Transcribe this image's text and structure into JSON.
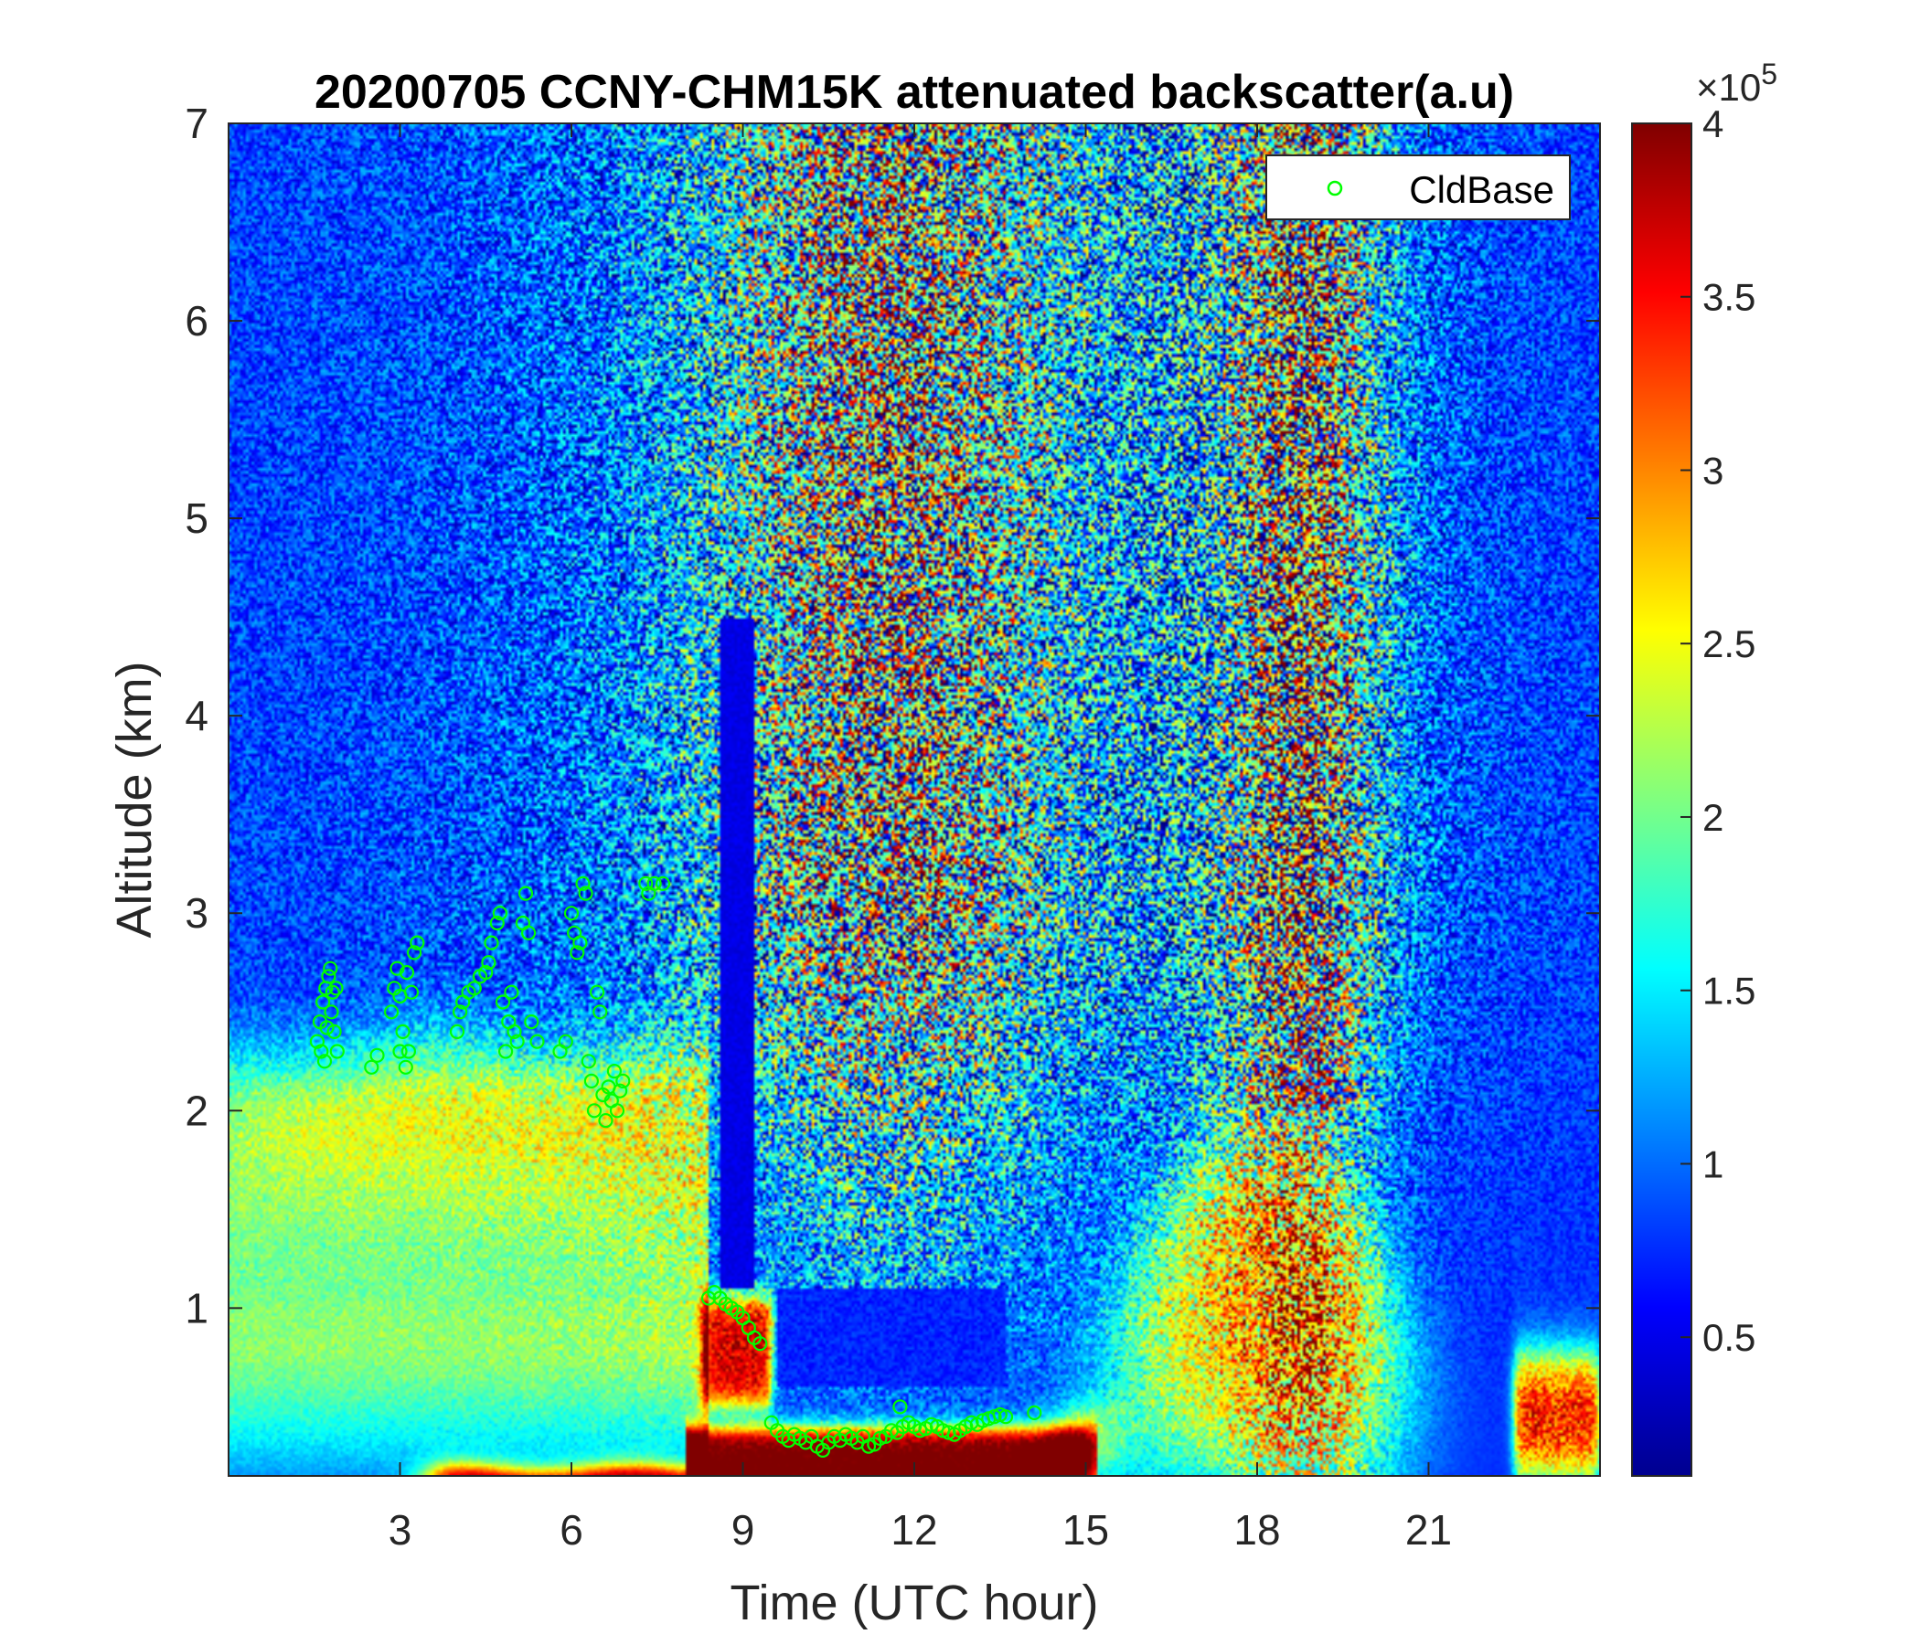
{
  "chart_data": {
    "type": "heatmap",
    "title": "20200705 CCNY-CHM15K attenuated backscatter(a.u)",
    "xlabel": "Time (UTC hour)",
    "ylabel": "Altitude (km)",
    "xlim": [
      0,
      24
    ],
    "ylim": [
      0.15,
      7
    ],
    "xticks": [
      3,
      6,
      9,
      12,
      15,
      18,
      21
    ],
    "yticks": [
      1,
      2,
      3,
      4,
      5,
      6,
      7
    ],
    "colormap": "jet",
    "colorbar": {
      "range": [
        10000,
        400000
      ],
      "ticks": [
        0.5,
        1,
        1.5,
        2,
        2.5,
        3,
        3.5,
        4
      ],
      "exponent_label": "×10",
      "exponent_power": "5"
    },
    "grid": false,
    "legend": {
      "placement": "top-right",
      "entries": [
        "CldBase"
      ]
    },
    "features": {
      "surface_layer_peak_altitude_km": 0.3,
      "daytime_boundary_layer_top_km": 0.95,
      "clear_channels_hours": [
        8.6,
        9.2
      ],
      "afternoon_plume_hours": [
        15.5,
        20.5
      ],
      "late_surface_band_hours": [
        22.5,
        24
      ]
    },
    "series": [
      {
        "name": "CldBase",
        "type": "scatter",
        "color": "#00ff00",
        "points": [
          [
            1.55,
            2.35
          ],
          [
            1.6,
            2.45
          ],
          [
            1.65,
            2.55
          ],
          [
            1.7,
            2.62
          ],
          [
            1.75,
            2.68
          ],
          [
            1.8,
            2.5
          ],
          [
            1.85,
            2.4
          ],
          [
            1.9,
            2.3
          ],
          [
            1.62,
            2.3
          ],
          [
            1.72,
            2.42
          ],
          [
            1.82,
            2.6
          ],
          [
            1.68,
            2.25
          ],
          [
            1.78,
            2.72
          ],
          [
            1.88,
            2.62
          ],
          [
            2.5,
            2.22
          ],
          [
            2.6,
            2.28
          ],
          [
            2.85,
            2.5
          ],
          [
            2.9,
            2.62
          ],
          [
            2.95,
            2.72
          ],
          [
            3.0,
            2.58
          ],
          [
            3.05,
            2.4
          ],
          [
            3.1,
            2.22
          ],
          [
            3.15,
            2.3
          ],
          [
            3.2,
            2.6
          ],
          [
            3.25,
            2.8
          ],
          [
            3.3,
            2.85
          ],
          [
            3.0,
            2.3
          ],
          [
            3.12,
            2.7
          ],
          [
            4.0,
            2.4
          ],
          [
            4.05,
            2.5
          ],
          [
            4.1,
            2.55
          ],
          [
            4.2,
            2.6
          ],
          [
            4.3,
            2.62
          ],
          [
            4.4,
            2.68
          ],
          [
            4.5,
            2.7
          ],
          [
            4.55,
            2.75
          ],
          [
            4.6,
            2.85
          ],
          [
            4.7,
            2.95
          ],
          [
            4.75,
            3.0
          ],
          [
            4.8,
            2.55
          ],
          [
            4.9,
            2.45
          ],
          [
            5.0,
            2.4
          ],
          [
            5.05,
            2.35
          ],
          [
            5.15,
            2.95
          ],
          [
            5.2,
            3.1
          ],
          [
            5.25,
            2.9
          ],
          [
            5.3,
            2.45
          ],
          [
            5.4,
            2.35
          ],
          [
            4.85,
            2.3
          ],
          [
            4.95,
            2.6
          ],
          [
            5.8,
            2.3
          ],
          [
            5.9,
            2.35
          ],
          [
            6.0,
            3.0
          ],
          [
            6.05,
            2.9
          ],
          [
            6.1,
            2.8
          ],
          [
            6.15,
            2.85
          ],
          [
            6.2,
            3.15
          ],
          [
            6.25,
            3.1
          ],
          [
            6.3,
            2.25
          ],
          [
            6.35,
            2.15
          ],
          [
            6.4,
            2.0
          ],
          [
            6.45,
            2.6
          ],
          [
            6.5,
            2.5
          ],
          [
            6.55,
            2.08
          ],
          [
            6.6,
            1.95
          ],
          [
            6.65,
            2.12
          ],
          [
            6.7,
            2.05
          ],
          [
            6.75,
            2.2
          ],
          [
            6.8,
            2.0
          ],
          [
            6.85,
            2.1
          ],
          [
            6.9,
            2.15
          ],
          [
            7.3,
            3.15
          ],
          [
            7.35,
            3.1
          ],
          [
            7.45,
            3.15
          ],
          [
            7.6,
            3.15
          ],
          [
            8.4,
            1.05
          ],
          [
            8.5,
            1.08
          ],
          [
            8.6,
            1.05
          ],
          [
            8.7,
            1.02
          ],
          [
            8.8,
            1.0
          ],
          [
            8.9,
            0.98
          ],
          [
            9.0,
            0.95
          ],
          [
            9.1,
            0.9
          ],
          [
            9.2,
            0.85
          ],
          [
            9.3,
            0.82
          ],
          [
            9.5,
            0.42
          ],
          [
            9.6,
            0.38
          ],
          [
            9.7,
            0.35
          ],
          [
            9.8,
            0.33
          ],
          [
            9.9,
            0.36
          ],
          [
            10.0,
            0.34
          ],
          [
            10.1,
            0.32
          ],
          [
            10.2,
            0.35
          ],
          [
            10.3,
            0.3
          ],
          [
            10.4,
            0.28
          ],
          [
            10.5,
            0.32
          ],
          [
            10.6,
            0.35
          ],
          [
            10.7,
            0.33
          ],
          [
            10.8,
            0.36
          ],
          [
            10.9,
            0.34
          ],
          [
            11.0,
            0.32
          ],
          [
            11.1,
            0.35
          ],
          [
            11.2,
            0.3
          ],
          [
            11.3,
            0.31
          ],
          [
            11.4,
            0.34
          ],
          [
            11.5,
            0.35
          ],
          [
            11.6,
            0.38
          ],
          [
            11.7,
            0.37
          ],
          [
            11.8,
            0.4
          ],
          [
            11.9,
            0.42
          ],
          [
            12.0,
            0.4
          ],
          [
            12.1,
            0.38
          ],
          [
            12.2,
            0.39
          ],
          [
            12.3,
            0.41
          ],
          [
            12.4,
            0.4
          ],
          [
            12.5,
            0.38
          ],
          [
            12.6,
            0.37
          ],
          [
            12.7,
            0.36
          ],
          [
            12.8,
            0.38
          ],
          [
            12.9,
            0.4
          ],
          [
            13.0,
            0.42
          ],
          [
            13.1,
            0.41
          ],
          [
            13.2,
            0.43
          ],
          [
            13.3,
            0.44
          ],
          [
            13.4,
            0.45
          ],
          [
            13.5,
            0.46
          ],
          [
            13.6,
            0.45
          ],
          [
            14.1,
            0.47
          ],
          [
            11.75,
            0.5
          ]
        ]
      }
    ]
  }
}
